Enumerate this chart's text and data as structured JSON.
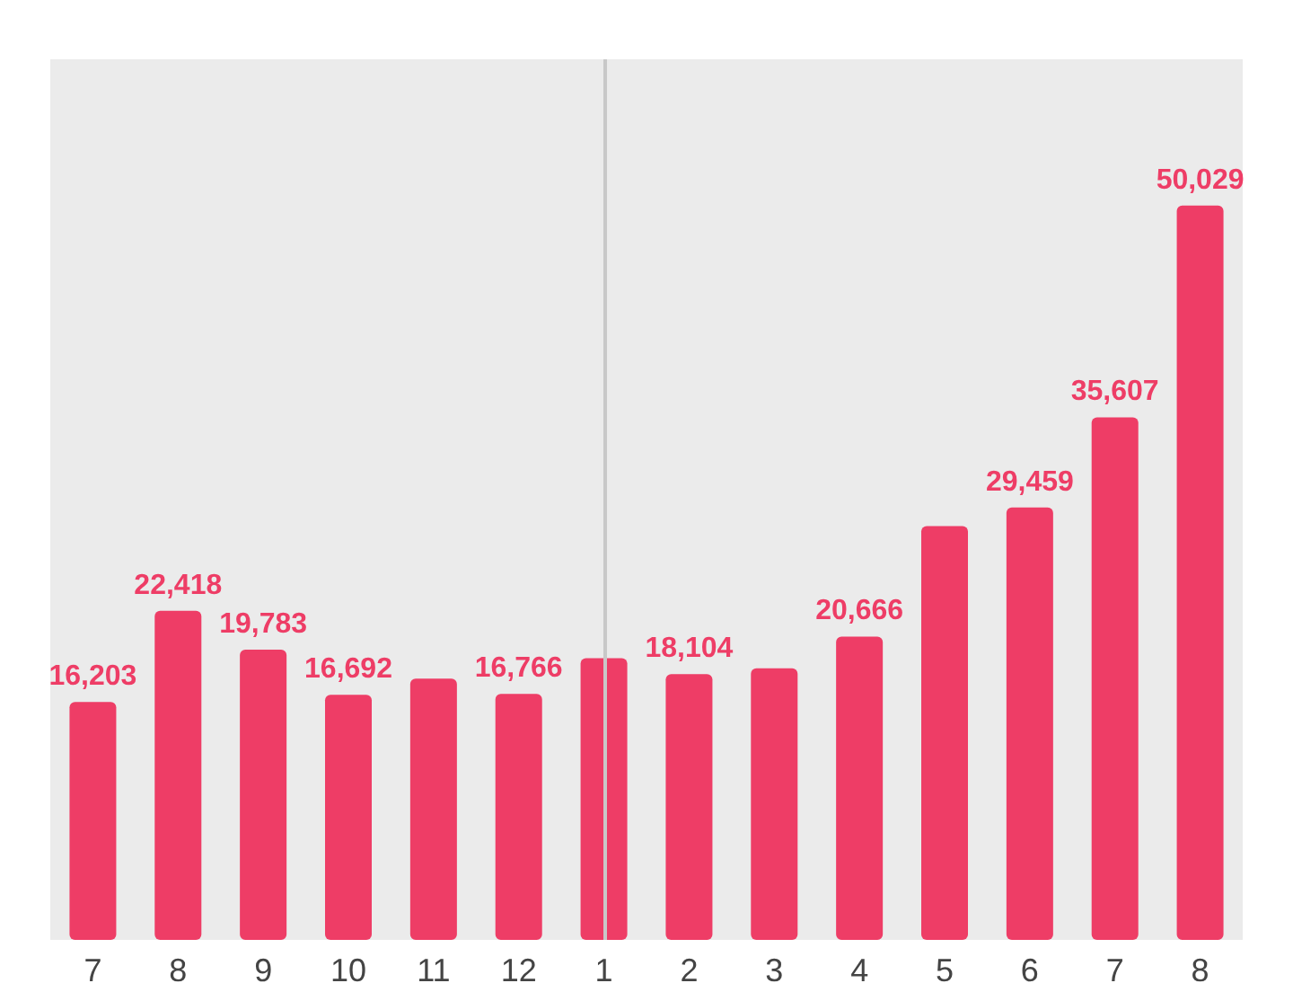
{
  "chart_data": {
    "type": "bar",
    "categories": [
      "7",
      "8",
      "9",
      "10",
      "11",
      "12",
      "1",
      "2",
      "3",
      "4",
      "5",
      "6",
      "7",
      "8"
    ],
    "values": [
      16203,
      22418,
      19783,
      16692,
      17800,
      16766,
      19200,
      18104,
      18500,
      20666,
      28200,
      29459,
      35607,
      50029
    ],
    "value_labels": [
      "16,203",
      "22,418",
      "19,783",
      "16,692",
      null,
      "16,766",
      null,
      "18,104",
      null,
      "20,666",
      null,
      "29,459",
      "35,607",
      "50,029"
    ],
    "color": "#ee3d66"
  }
}
